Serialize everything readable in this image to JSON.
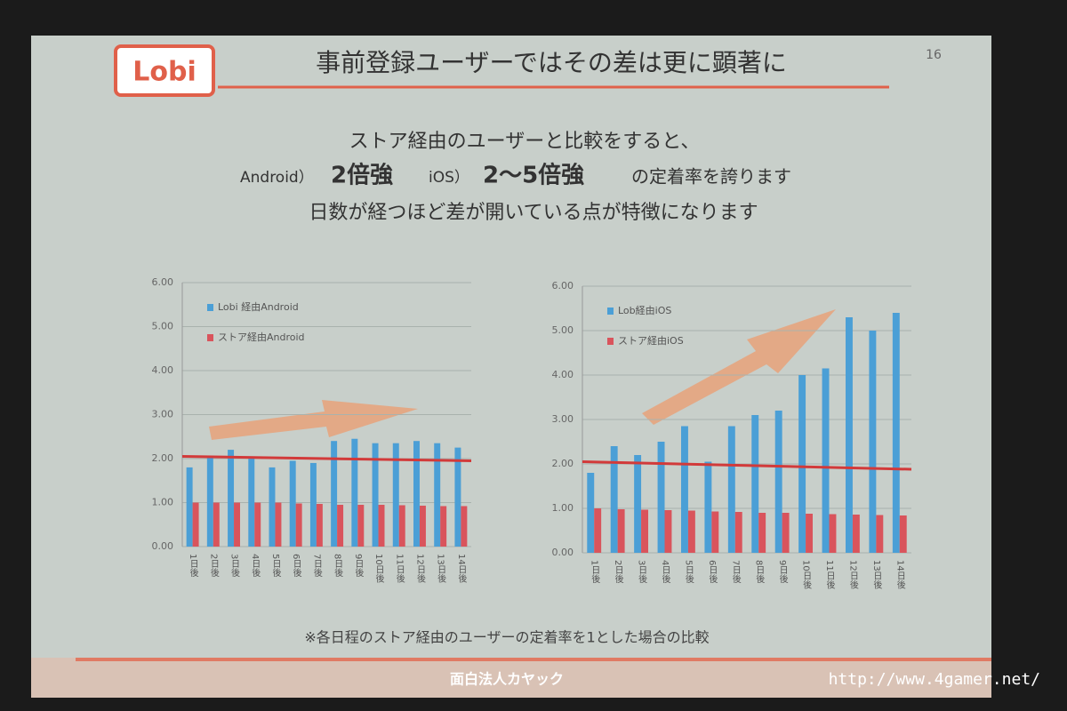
{
  "slide": {
    "logo": "Lobi",
    "title": "事前登録ユーザーではその差は更に顕著に",
    "page": "16",
    "line1": "ストア経由のユーザーと比較をすると、",
    "line2": {
      "a": "Android）",
      "b": "2倍強",
      "c": "iOS）",
      "d": "2〜5倍強",
      "e": "の定着率を誇ります"
    },
    "line3": "日数が経つほど差が開いている点が特徴になります",
    "note": "※各日程のストア経由のユーザーの定着率を1とした場合の比較",
    "footer": "面白法人カヤック",
    "watermark": "http://www.4gamer.net/"
  },
  "chart_data": [
    {
      "type": "bar",
      "categories": [
        "1日後",
        "2日後",
        "3日後",
        "4日後",
        "5日後",
        "6日後",
        "7日後",
        "8日後",
        "9日後",
        "10日後",
        "11日後",
        "12日後",
        "13日後",
        "14日後"
      ],
      "series": [
        {
          "name": "Lobi 経由Android",
          "color": "#4b9fd6",
          "values": [
            1.8,
            2.05,
            2.2,
            2.05,
            1.8,
            1.95,
            1.9,
            2.4,
            2.45,
            2.35,
            2.35,
            2.4,
            2.35,
            2.25
          ]
        },
        {
          "name": "ストア経由Android",
          "color": "#d9545c",
          "values": [
            1.0,
            1.0,
            1.0,
            1.0,
            1.0,
            0.98,
            0.97,
            0.95,
            0.95,
            0.95,
            0.94,
            0.93,
            0.92,
            0.92
          ]
        }
      ],
      "ylim": [
        0,
        6
      ],
      "yticks": [
        {
          "value": 0,
          "label": "0.00"
        },
        {
          "value": 1,
          "label": "1.00"
        },
        {
          "value": 2,
          "label": "2.00"
        },
        {
          "value": 3,
          "label": "3.00"
        },
        {
          "value": 4,
          "label": "4.00"
        },
        {
          "value": 5,
          "label": "5.00"
        },
        {
          "value": 6,
          "label": "6.00"
        }
      ],
      "grid": true
    },
    {
      "type": "bar",
      "categories": [
        "1日後",
        "2日後",
        "3日後",
        "4日後",
        "5日後",
        "6日後",
        "7日後",
        "8日後",
        "9日後",
        "10日後",
        "11日後",
        "12日後",
        "13日後",
        "14日後"
      ],
      "series": [
        {
          "name": "Lob経由iOS",
          "color": "#4b9fd6",
          "values": [
            1.8,
            2.4,
            2.2,
            2.5,
            2.85,
            2.05,
            2.85,
            3.1,
            3.2,
            4.0,
            4.15,
            5.3,
            5.0,
            5.4
          ]
        },
        {
          "name": "ストア経由iOS",
          "color": "#d9545c",
          "values": [
            1.0,
            0.98,
            0.97,
            0.96,
            0.95,
            0.93,
            0.92,
            0.9,
            0.9,
            0.88,
            0.87,
            0.86,
            0.85,
            0.84
          ]
        }
      ],
      "ylim": [
        0,
        6
      ],
      "yticks": [
        {
          "value": 0,
          "label": "0.00"
        },
        {
          "value": 1,
          "label": "1.00"
        },
        {
          "value": 2,
          "label": "2.00"
        },
        {
          "value": 3,
          "label": "3.00"
        },
        {
          "value": 4,
          "label": "4.00"
        },
        {
          "value": 5,
          "label": "5.00"
        },
        {
          "value": 6,
          "label": "6.00"
        }
      ],
      "grid": true
    }
  ]
}
